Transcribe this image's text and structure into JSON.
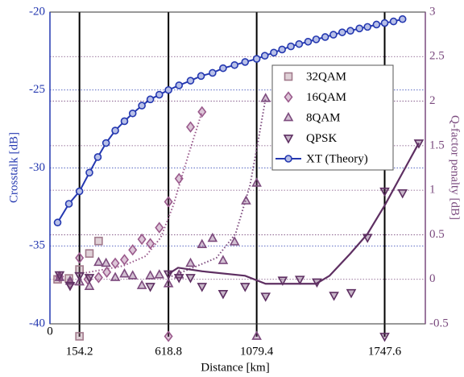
{
  "chart_data": {
    "type": "line",
    "xlabel": "Distance [km]",
    "ylabel": "Crosstalk [dB]",
    "y2label": "Q-factor penalty [dB]",
    "xlim": [
      0,
      1960
    ],
    "xticks": [
      0,
      154.2,
      618.8,
      1079.4,
      1747.6
    ],
    "ylim": [
      -40,
      -20
    ],
    "yticks": [
      -40,
      -35,
      -30,
      -25,
      -20
    ],
    "y2lim": [
      -0.5,
      3
    ],
    "y2ticks": [
      -0.5,
      0,
      0.5,
      1,
      1.5,
      2,
      2.5,
      3
    ],
    "grid": true,
    "legend": "upper right",
    "series": [
      {
        "name": "32QAM",
        "color": "#a27a8c",
        "marker": "square",
        "axis": "y2",
        "x": [
          40,
          99,
          154.2,
          206,
          254,
          154.2
        ],
        "values": [
          0,
          0.01,
          0.11,
          0.29,
          0.43,
          -0.64
        ]
      },
      {
        "name": "16QAM",
        "color": "#9a5a8c",
        "marker": "diamond",
        "axis": "y2",
        "x": [
          50,
          105,
          154.2,
          198,
          254,
          297,
          341,
          389,
          432,
          480,
          524,
          571,
          618.8,
          674,
          734,
          794,
          618.8
        ],
        "values": [
          0.03,
          -0.05,
          0.24,
          0,
          0.02,
          0.08,
          0.18,
          0.22,
          0.33,
          0.45,
          0.4,
          0.58,
          0.87,
          1.13,
          1.71,
          1.88,
          -0.64
        ],
        "trend": {
          "dash": "dotted",
          "x": [
            154.2,
            381,
            500,
            579,
            644,
            719,
            794
          ],
          "values": [
            0.06,
            0.15,
            0.26,
            0.47,
            0.83,
            1.37,
            1.88
          ]
        }
      },
      {
        "name": "8QAM",
        "color": "#7d4b7e",
        "marker": "triangle-up",
        "axis": "y2",
        "x": [
          50,
          105,
          154.2,
          206,
          254,
          293,
          341,
          389,
          432,
          480,
          524,
          571,
          618.8,
          674,
          734,
          794,
          849,
          904,
          964,
          1024,
          1079.4,
          1126,
          1079.4
        ],
        "values": [
          0.02,
          -0.02,
          -0.03,
          -0.08,
          0.19,
          0.18,
          0.02,
          0.06,
          0.04,
          -0.07,
          0.04,
          0.05,
          -0.05,
          0.05,
          0.18,
          0.39,
          0.46,
          0.21,
          0.42,
          0.88,
          1.08,
          2.03,
          -0.64
        ],
        "trend": {
          "dash": "dotted",
          "x": [
            618.8,
            769,
            869,
            969,
            1044,
            1091,
            1126
          ],
          "values": [
            0.02,
            0.15,
            0.24,
            0.51,
            1.05,
            1.6,
            2.03
          ]
        }
      },
      {
        "name": "QPSK",
        "color": "#5e2f62",
        "marker": "triangle-down",
        "axis": "y2",
        "x": [
          50,
          105,
          154.2,
          206,
          524,
          618.8,
          674,
          734,
          794,
          904,
          1019,
          1126,
          1215,
          1305,
          1394,
          1483,
          1573,
          1658,
          1747.6,
          1841,
          1926,
          1747.6
        ],
        "values": [
          0.05,
          -0.07,
          0.04,
          0.02,
          -0.08,
          0.06,
          0.02,
          0.02,
          -0.08,
          -0.16,
          -0.08,
          -0.19,
          -0.01,
          0,
          -0.03,
          -0.18,
          -0.15,
          0.47,
          0.99,
          0.97,
          1.53,
          -0.64
        ],
        "trend": {
          "dash": "solid",
          "x": [
            618.8,
            669,
            794,
            1019,
            1126,
            1227,
            1390,
            1460,
            1569,
            1658,
            1748,
            1926
          ],
          "values": [
            0.06,
            0.13,
            0.09,
            0.04,
            -0.05,
            -0.05,
            -0.05,
            0.04,
            0.29,
            0.51,
            0.83,
            1.53
          ]
        }
      },
      {
        "name": "XT (Theory)",
        "color": "#2438b0",
        "marker": "circle",
        "line": "solid",
        "axis": "y",
        "x": [
          40,
          99,
          154.2,
          206,
          250,
          293,
          341,
          389,
          432,
          480,
          524,
          571,
          618.8,
          674,
          734,
          789,
          849,
          904,
          964,
          1019,
          1079.4,
          1122,
          1169,
          1212,
          1258,
          1301,
          1348,
          1390,
          1437,
          1480,
          1526,
          1569,
          1616,
          1658,
          1705,
          1747.6,
          1794,
          1841
        ],
        "values": [
          -33.5,
          -32.3,
          -31.5,
          -30.3,
          -29.3,
          -28.4,
          -27.6,
          -27.0,
          -26.5,
          -26.0,
          -25.6,
          -25.3,
          -25.0,
          -24.7,
          -24.4,
          -24.1,
          -23.9,
          -23.6,
          -23.4,
          -23.2,
          -23.0,
          -22.8,
          -22.6,
          -22.4,
          -22.2,
          -22.05,
          -21.9,
          -21.75,
          -21.6,
          -21.45,
          -21.3,
          -21.2,
          -21.05,
          -20.95,
          -20.8,
          -20.7,
          -20.6,
          -20.45
        ]
      }
    ]
  }
}
